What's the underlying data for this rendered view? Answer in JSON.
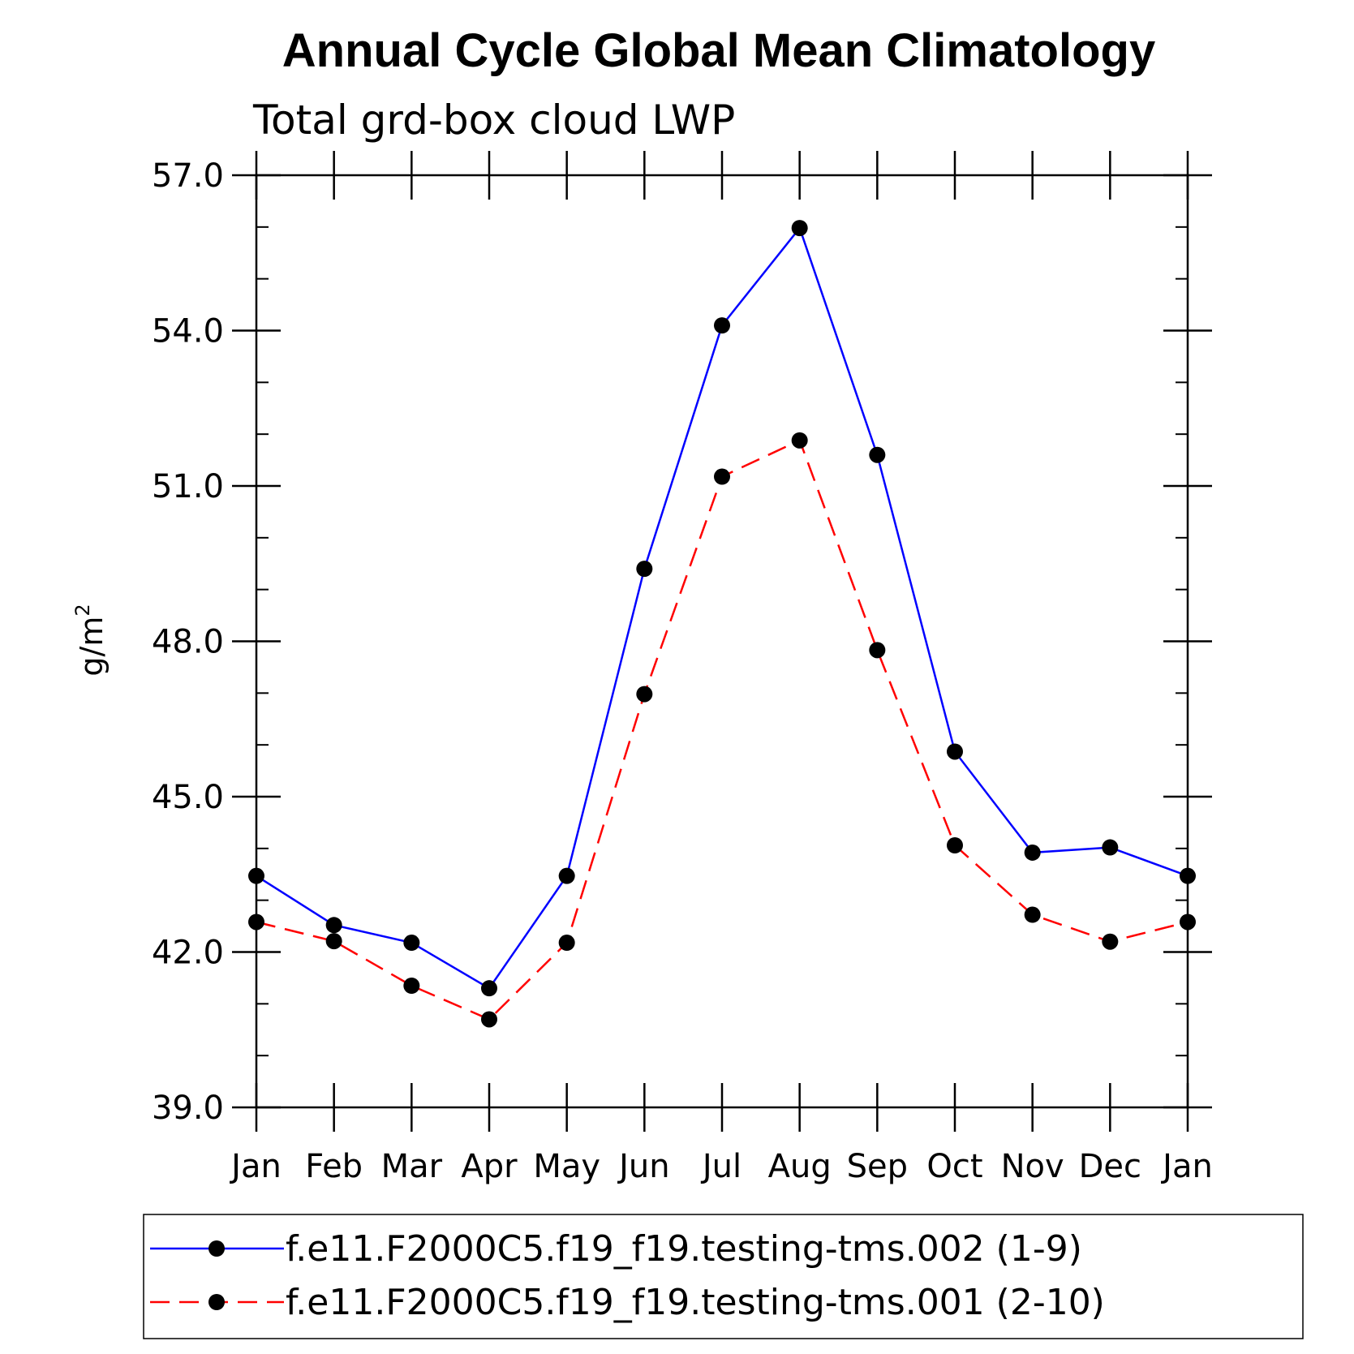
{
  "chart_data": {
    "type": "line",
    "title": "Annual Cycle Global Mean Climatology",
    "subtitle": "Total grd-box cloud LWP",
    "ylabel_base": "g/m",
    "ylabel_sup": "2",
    "xlabel": "",
    "categories": [
      "Jan",
      "Feb",
      "Mar",
      "Apr",
      "May",
      "Jun",
      "Jul",
      "Aug",
      "Sep",
      "Oct",
      "Nov",
      "Dec",
      "Jan"
    ],
    "ylim": [
      39.0,
      57.0
    ],
    "yticks": [
      "39.0",
      "42.0",
      "45.0",
      "48.0",
      "51.0",
      "54.0",
      "57.0"
    ],
    "legend_position": "bottom",
    "series": [
      {
        "name": "f.e11.F2000C5.f19_f19.testing-tms.002 (1-9)",
        "color": "#0000ff",
        "dash": "solid",
        "values": [
          43.47,
          42.52,
          42.18,
          41.3,
          43.47,
          49.4,
          54.1,
          55.98,
          51.6,
          45.87,
          43.92,
          44.02,
          43.47
        ]
      },
      {
        "name": "f.e11.F2000C5.f19_f19.testing-tms.001 (2-10)",
        "color": "#ff0000",
        "dash": "dashed",
        "values": [
          42.58,
          42.21,
          41.35,
          40.7,
          42.18,
          46.98,
          51.18,
          51.88,
          47.83,
          44.06,
          42.72,
          42.2,
          42.58
        ]
      }
    ]
  }
}
